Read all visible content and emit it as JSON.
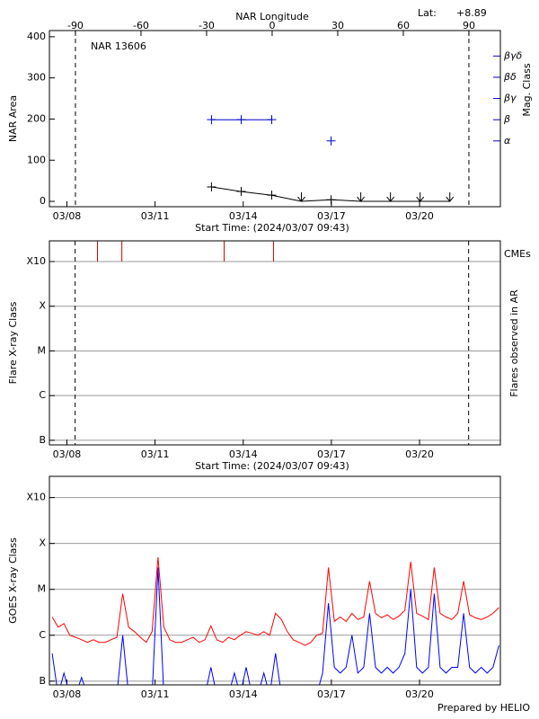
{
  "chart_data": [
    {
      "type": "line",
      "title": "NAR 13606",
      "lat_label": "Lat:",
      "lat_value": "+8.89",
      "x_label": "Start Time: (2024/03/07 09:43)",
      "y_label": "NAR Area",
      "x2_label": "NAR Longitude",
      "y2_label": "Mag. Class",
      "y2_color": "#0000cc",
      "xlim": [
        7.405,
        22.75
      ],
      "xticks": [
        {
          "value": 8,
          "label": "03/08"
        },
        {
          "value": 11,
          "label": "03/11"
        },
        {
          "value": 14,
          "label": "03/14"
        },
        {
          "value": 17,
          "label": "03/17"
        },
        {
          "value": 20,
          "label": "03/20"
        }
      ],
      "x2lim": [
        -101.9,
        104.4
      ],
      "x2ticks": [
        -90,
        -60,
        -30,
        0,
        30,
        60,
        90
      ],
      "limb_longitudes": [
        -90,
        90
      ],
      "ylim": [
        -13,
        415
      ],
      "yticks": [
        0,
        100,
        200,
        300,
        400
      ],
      "y2lim": [
        -0.1,
        8.2
      ],
      "y2ticks": [
        {
          "value": 3,
          "label": "α"
        },
        {
          "value": 4,
          "label": "β"
        },
        {
          "value": 5,
          "label": "βγ"
        },
        {
          "value": 6,
          "label": "βδ"
        },
        {
          "value": 7,
          "label": "βγδ"
        }
      ],
      "grid": false,
      "series": [
        {
          "color": "#000000",
          "marker": "+",
          "x": [
            12.92,
            13.93,
            14.97,
            15.98,
            16.99,
            18.0,
            19.01,
            20.02,
            21.03
          ],
          "values": [
            35,
            24,
            15,
            0,
            4,
            0,
            0,
            0,
            0
          ]
        },
        {
          "color": "#0000cc",
          "marker": "+",
          "axis": "y2",
          "x": [
            12.92,
            13.93,
            14.97,
            15.98,
            16.99
          ],
          "values": [
            4,
            4,
            4,
            null,
            3
          ]
        }
      ]
    },
    {
      "type": "events",
      "x_label": "Start Time: (2024/03/07 09:43)",
      "y_label": "Flare X-ray Class",
      "right_label": "Flares observed in AR",
      "xlim": [
        7.405,
        22.75
      ],
      "xticks": [
        {
          "value": 8,
          "label": "03/08"
        },
        {
          "value": 11,
          "label": "03/11"
        },
        {
          "value": 14,
          "label": "03/14"
        },
        {
          "value": 17,
          "label": "03/17"
        },
        {
          "value": 20,
          "label": "03/20"
        }
      ],
      "log_y": true,
      "ylim": [
        7.9e-08,
        0.0029
      ],
      "yticks": [
        {
          "value": 1e-07,
          "label": "B"
        },
        {
          "value": 1e-06,
          "label": "C"
        },
        {
          "value": 1e-05,
          "label": "M"
        },
        {
          "value": 0.0001,
          "label": "X"
        },
        {
          "value": 0.001,
          "label": "X10"
        }
      ],
      "grid": true,
      "limb_times": [
        8.28,
        21.67
      ],
      "cme_label": "CMEs",
      "cme_color": "#e00000",
      "cme_times": [
        9.04,
        9.87,
        13.35,
        15.03
      ]
    },
    {
      "type": "line",
      "y_label": "GOES X-ray Class",
      "xlim": [
        7.405,
        22.75
      ],
      "xticks": [
        {
          "value": 8,
          "label": "03/08"
        },
        {
          "value": 11,
          "label": "03/11"
        },
        {
          "value": 14,
          "label": "03/14"
        },
        {
          "value": 17,
          "label": "03/17"
        },
        {
          "value": 20,
          "label": "03/20"
        }
      ],
      "log_y": true,
      "ylim": [
        8.3e-08,
        0.0029
      ],
      "yticks": [
        {
          "value": 1e-07,
          "label": "B"
        },
        {
          "value": 1e-06,
          "label": "C"
        },
        {
          "value": 1e-05,
          "label": "M"
        },
        {
          "value": 0.0001,
          "label": "X"
        },
        {
          "value": 0.001,
          "label": "X10"
        }
      ],
      "grid": true,
      "x": [
        7.5,
        7.7,
        7.9,
        8.1,
        8.3,
        8.5,
        8.7,
        8.9,
        9.1,
        9.3,
        9.5,
        9.7,
        9.9,
        10.1,
        10.3,
        10.5,
        10.7,
        10.9,
        11.1,
        11.3,
        11.5,
        11.7,
        11.9,
        12.1,
        12.3,
        12.5,
        12.7,
        12.9,
        13.1,
        13.3,
        13.5,
        13.7,
        13.9,
        14.1,
        14.3,
        14.5,
        14.7,
        14.9,
        15.1,
        15.3,
        15.5,
        15.7,
        15.9,
        16.1,
        16.3,
        16.5,
        16.7,
        16.9,
        17.1,
        17.3,
        17.5,
        17.7,
        17.9,
        18.1,
        18.3,
        18.5,
        18.7,
        18.9,
        19.1,
        19.3,
        19.5,
        19.7,
        19.9,
        20.1,
        20.3,
        20.5,
        20.7,
        20.9,
        21.1,
        21.3,
        21.5,
        21.7,
        21.9,
        22.1,
        22.3,
        22.5,
        22.7
      ],
      "series": [
        {
          "color": "#ff0000",
          "values": [
            2.5e-06,
            1.5e-06,
            1.8e-06,
            1e-06,
            9e-07,
            8e-07,
            7e-07,
            8e-07,
            7e-07,
            7e-07,
            8e-07,
            9e-07,
            8e-06,
            1.5e-06,
            1.2e-06,
            9e-07,
            7e-07,
            1.2e-06,
            5e-05,
            1.5e-06,
            8e-07,
            7e-07,
            7e-07,
            8e-07,
            9e-07,
            7e-07,
            8e-07,
            1.6e-06,
            8e-07,
            7e-07,
            9e-07,
            8e-07,
            1e-06,
            1.2e-06,
            1.1e-06,
            1e-06,
            1.2e-06,
            1e-06,
            3e-06,
            2.2e-06,
            1.2e-06,
            8e-07,
            7e-07,
            6e-07,
            7e-07,
            1e-06,
            1.1e-06,
            3e-05,
            2e-06,
            2.5e-06,
            2e-06,
            3e-06,
            2.2e-06,
            2.5e-06,
            1.5e-05,
            3e-06,
            2.4e-06,
            2.8e-06,
            2.2e-06,
            2.6e-06,
            3.5e-06,
            4e-05,
            3e-06,
            2.6e-06,
            2.2e-06,
            3e-05,
            3e-06,
            2.5e-06,
            2.2e-06,
            3e-06,
            1.5e-05,
            2.8e-06,
            2.4e-06,
            2.2e-06,
            2.5e-06,
            3e-06,
            4e-06
          ]
        },
        {
          "color": "#0000ff",
          "values": [
            4e-07,
            5e-08,
            1.5e-07,
            5e-08,
            5e-08,
            1.2e-07,
            5e-08,
            5e-08,
            5e-08,
            5e-08,
            5e-08,
            5e-08,
            1e-06,
            5e-08,
            5e-08,
            5e-08,
            5e-08,
            5e-08,
            3e-05,
            5e-08,
            5e-08,
            5e-08,
            5e-08,
            5e-08,
            5e-08,
            5e-08,
            5e-08,
            2e-07,
            5e-08,
            5e-08,
            5e-08,
            1.5e-07,
            5e-08,
            2e-07,
            5e-08,
            5e-08,
            1.5e-07,
            5e-08,
            4e-07,
            5e-08,
            5e-08,
            5e-08,
            5e-08,
            5e-08,
            5e-08,
            5e-08,
            1.5e-07,
            5e-06,
            2e-07,
            1.5e-07,
            2e-07,
            1e-06,
            1.5e-07,
            2e-07,
            3e-06,
            2e-07,
            1.5e-07,
            2e-07,
            1.5e-07,
            2e-07,
            4e-07,
            1e-05,
            2e-07,
            1.5e-07,
            2e-07,
            8e-06,
            2e-07,
            1.5e-07,
            2e-07,
            2e-07,
            3e-06,
            2e-07,
            1.5e-07,
            2e-07,
            1.5e-07,
            2e-07,
            6e-07
          ]
        }
      ]
    }
  ],
  "footer": "Prepared by HELIO"
}
